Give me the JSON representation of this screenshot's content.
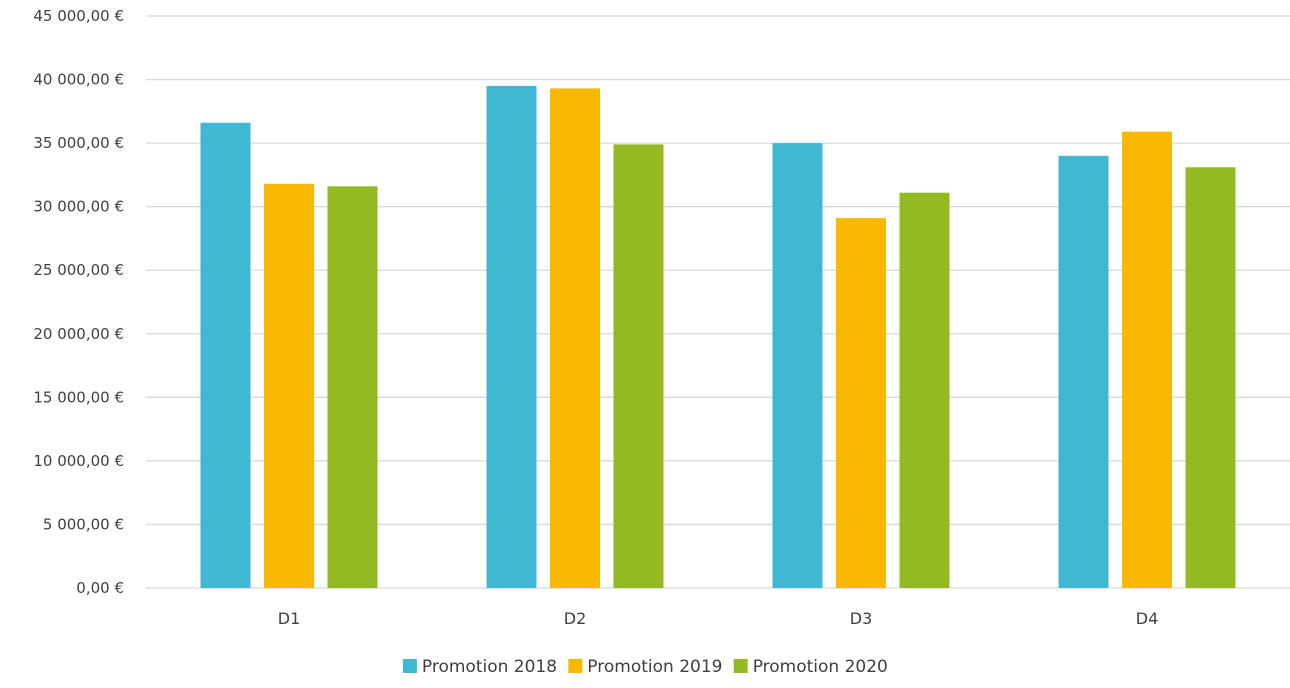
{
  "chart_data": {
    "type": "bar",
    "title": "",
    "xlabel": "",
    "ylabel": "",
    "categories": [
      "D1",
      "D2",
      "D3",
      "D4"
    ],
    "series": [
      {
        "name": "Promotion 2018",
        "color": "#41B8D2",
        "values": [
          36600,
          39500,
          35000,
          34000
        ]
      },
      {
        "name": "Promotion 2019",
        "color": "#F8B800",
        "values": [
          31800,
          39300,
          29100,
          35900
        ]
      },
      {
        "name": "Promotion 2020",
        "color": "#93BA22",
        "values": [
          31600,
          34900,
          31100,
          33100
        ]
      }
    ],
    "ylim": [
      0,
      45000
    ],
    "y_ticks": [
      {
        "value": 0,
        "label": "0,00 €"
      },
      {
        "value": 5000,
        "label": "5 000,00 €"
      },
      {
        "value": 10000,
        "label": "10 000,00 €"
      },
      {
        "value": 15000,
        "label": "15 000,00 €"
      },
      {
        "value": 20000,
        "label": "20 000,00 €"
      },
      {
        "value": 25000,
        "label": "25 000,00 €"
      },
      {
        "value": 30000,
        "label": "30 000,00 €"
      },
      {
        "value": 35000,
        "label": "35 000,00 €"
      },
      {
        "value": 40000,
        "label": "40 000,00 €"
      },
      {
        "value": 45000,
        "label": "45 000,00 €"
      }
    ],
    "grid": true,
    "legend_position": "bottom",
    "gridline_color": "#D9D9D9"
  }
}
